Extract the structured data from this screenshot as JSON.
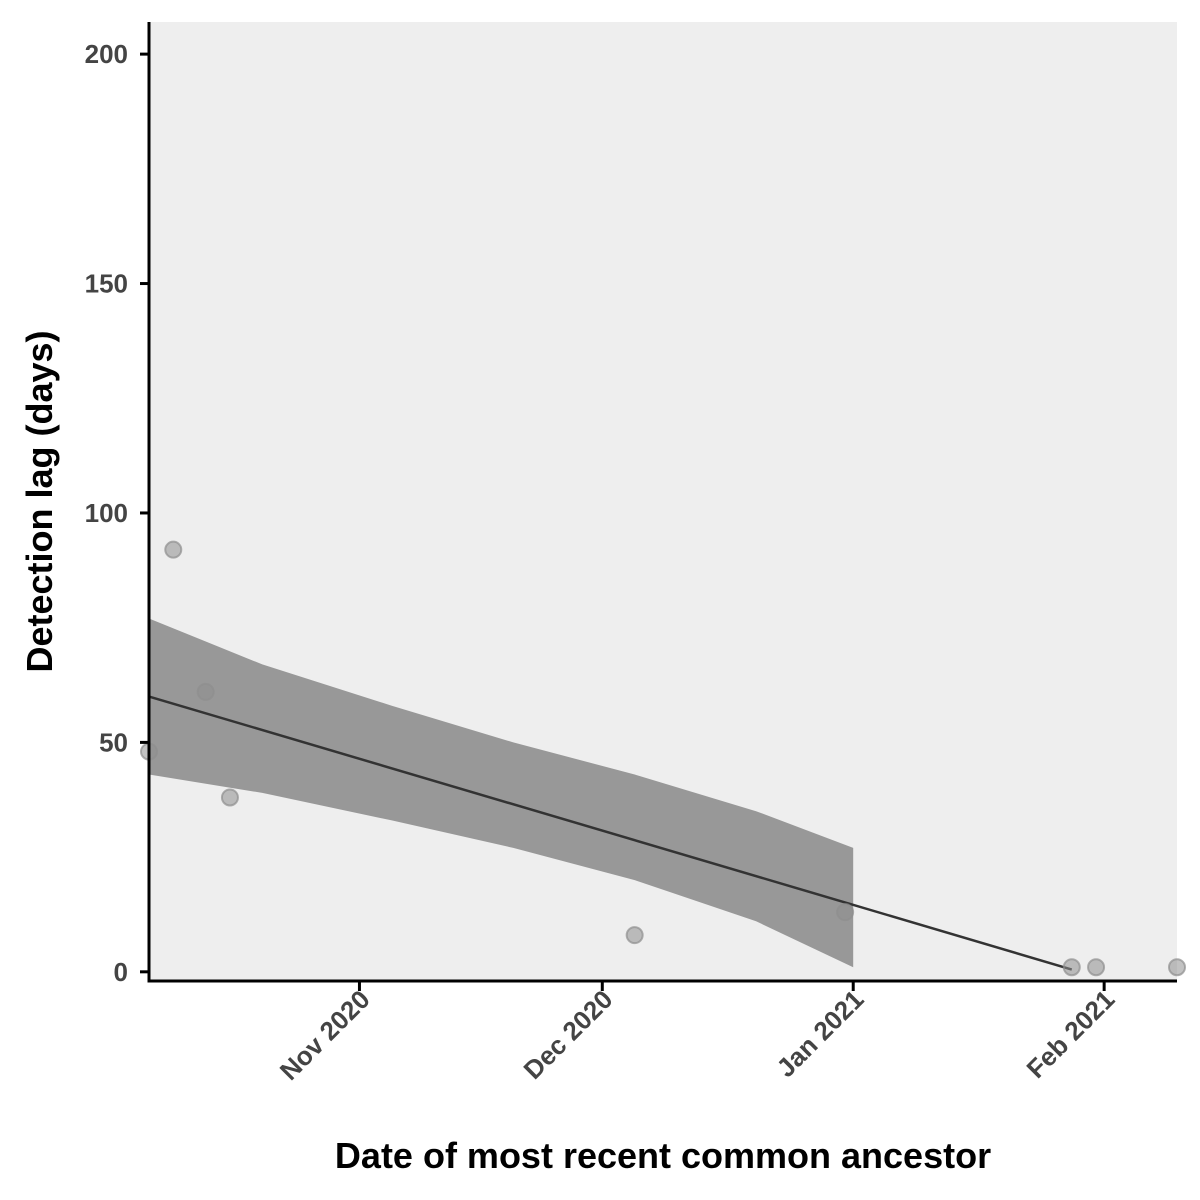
{
  "chart_data": {
    "type": "scatter",
    "xlabel": "Date of most recent common ancestor",
    "ylabel": "Detection lag (days)",
    "x_scale": "date",
    "xlim": [
      "2020-10-06",
      "2021-02-10"
    ],
    "ylim": [
      -2,
      207
    ],
    "x_ticks": [
      {
        "date": "2020-11-01",
        "label": "Nov 2020"
      },
      {
        "date": "2020-12-01",
        "label": "Dec 2020"
      },
      {
        "date": "2021-01-01",
        "label": "Jan 2021"
      },
      {
        "date": "2021-02-01",
        "label": "Feb 2021"
      }
    ],
    "y_ticks": [
      0,
      50,
      100,
      150,
      200
    ],
    "points": [
      {
        "x": "2020-10-06",
        "y": 48
      },
      {
        "x": "2020-10-09",
        "y": 92
      },
      {
        "x": "2020-10-13",
        "y": 61
      },
      {
        "x": "2020-10-16",
        "y": 38
      },
      {
        "x": "2020-12-05",
        "y": 8
      },
      {
        "x": "2020-12-31",
        "y": 13
      },
      {
        "x": "2021-01-28",
        "y": 1
      },
      {
        "x": "2021-01-31",
        "y": 1
      },
      {
        "x": "2021-02-10",
        "y": 1
      }
    ],
    "trend": {
      "x": [
        "2020-10-06",
        "2021-01-28"
      ],
      "y": [
        60,
        0.5
      ]
    },
    "confidence_band": {
      "x": [
        "2020-10-06",
        "2020-10-20",
        "2020-11-05",
        "2020-11-20",
        "2020-12-05",
        "2020-12-20",
        "2021-01-01"
      ],
      "upper": [
        77,
        67,
        58,
        50,
        43,
        35,
        27
      ],
      "lower": [
        43,
        39,
        33,
        27,
        20,
        11,
        1
      ]
    },
    "colors": {
      "panel_background": "#eeeeee",
      "band": "#989898",
      "trend_line": "#333333",
      "point": "#8f8f8f",
      "axis": "#000000"
    },
    "grid": false,
    "legend": "none"
  }
}
